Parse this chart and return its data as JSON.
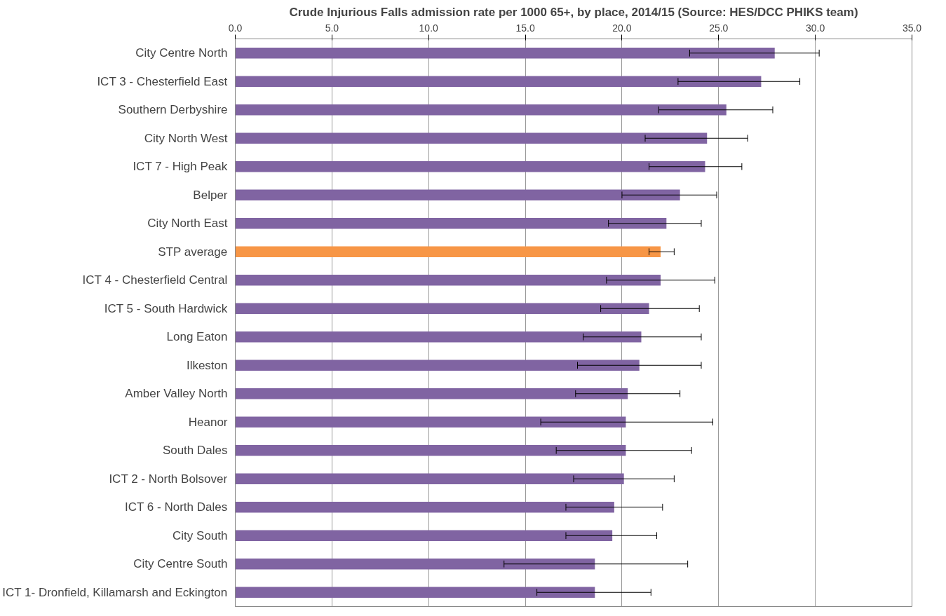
{
  "chart_data": {
    "type": "bar",
    "orientation": "horizontal",
    "title": "Crude Injurious Falls admission rate per 1000 65+, by place, 2014/15 (Source: HES/DCC PHIKS team)",
    "categories": [
      "City Centre North",
      "ICT 3 - Chesterfield East",
      "Southern Derbyshire",
      "City North West",
      "ICT 7 - High Peak",
      "Belper",
      "City North East",
      "STP average",
      "ICT 4 - Chesterfield Central",
      "ICT 5 - South Hardwick",
      "Long Eaton",
      "Ilkeston",
      "Amber Valley North",
      "Heanor",
      "South Dales",
      "ICT 2 - North Bolsover",
      "ICT 6 - North Dales",
      "City South",
      "City Centre South",
      "ICT 1- Dronfield, Killamarsh and Eckington"
    ],
    "values": [
      27.9,
      27.2,
      25.4,
      24.4,
      24.3,
      23.0,
      22.3,
      22.0,
      22.0,
      21.4,
      21.0,
      20.9,
      20.3,
      20.2,
      20.2,
      20.1,
      19.6,
      19.5,
      18.6,
      18.6
    ],
    "colors": [
      "#8064a2",
      "#8064a2",
      "#8064a2",
      "#8064a2",
      "#8064a2",
      "#8064a2",
      "#8064a2",
      "#f79646",
      "#8064a2",
      "#8064a2",
      "#8064a2",
      "#8064a2",
      "#8064a2",
      "#8064a2",
      "#8064a2",
      "#8064a2",
      "#8064a2",
      "#8064a2",
      "#8064a2",
      "#8064a2"
    ],
    "errors": [
      [
        23.5,
        30.2
      ],
      [
        22.9,
        29.2
      ],
      [
        21.9,
        27.8
      ],
      [
        21.2,
        26.5
      ],
      [
        21.4,
        26.2
      ],
      [
        20.0,
        24.9
      ],
      [
        19.3,
        24.1
      ],
      [
        21.4,
        22.7
      ],
      [
        19.2,
        24.8
      ],
      [
        18.9,
        24.0
      ],
      [
        18.0,
        24.1
      ],
      [
        17.7,
        24.1
      ],
      [
        17.6,
        23.0
      ],
      [
        15.8,
        24.7
      ],
      [
        16.6,
        23.6
      ],
      [
        17.5,
        22.7
      ],
      [
        17.1,
        22.1
      ],
      [
        17.1,
        21.8
      ],
      [
        13.9,
        23.4
      ],
      [
        15.6,
        21.5
      ]
    ],
    "xlim": [
      0,
      35
    ],
    "xticks": [
      {
        "value": 0,
        "label": "0.0"
      },
      {
        "value": 5,
        "label": "5.0"
      },
      {
        "value": 10,
        "label": "10.0"
      },
      {
        "value": 15,
        "label": "15.0"
      },
      {
        "value": 20,
        "label": "20.0"
      },
      {
        "value": 25,
        "label": "25.0"
      },
      {
        "value": 30,
        "label": "30.0"
      },
      {
        "value": 35,
        "label": "35.0"
      }
    ],
    "grid": "x"
  }
}
